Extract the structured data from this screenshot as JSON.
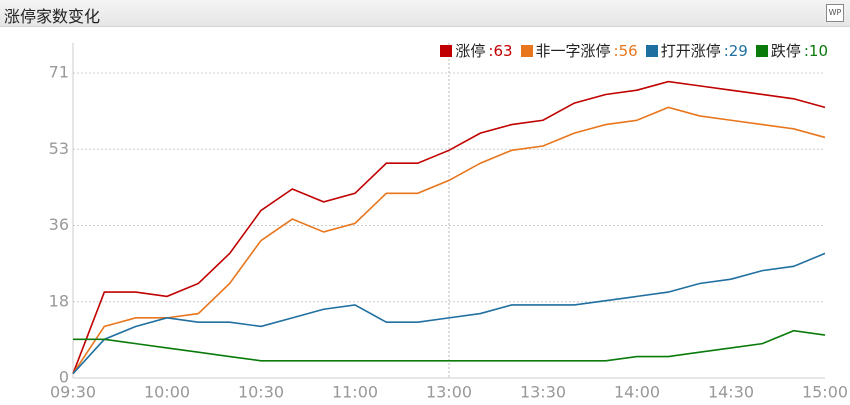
{
  "header": {
    "title": "涨停家数变化",
    "icon": "WP"
  },
  "chart_data": {
    "type": "line",
    "categories": [
      "09:30",
      null,
      null,
      "10:00",
      null,
      null,
      "10:30",
      null,
      null,
      "11:00",
      null,
      null,
      "13:00",
      null,
      null,
      "13:30",
      null,
      null,
      "14:00",
      null,
      null,
      "14:30",
      null,
      null,
      "15:00"
    ],
    "series": [
      {
        "name": "涨停",
        "label": ":63",
        "color": "#c00000",
        "values": [
          1,
          20,
          20,
          19,
          22,
          29,
          39,
          44,
          41,
          43,
          50,
          50,
          53,
          57,
          59,
          60,
          64,
          66,
          67,
          69,
          68,
          67,
          66,
          65,
          63
        ]
      },
      {
        "name": "非一字涨停",
        "label": ":56",
        "color": "#e8761d",
        "values": [
          1,
          12,
          14,
          14,
          15,
          22,
          32,
          37,
          34,
          36,
          43,
          43,
          46,
          50,
          53,
          54,
          57,
          59,
          60,
          63,
          61,
          60,
          59,
          58,
          56
        ]
      },
      {
        "name": "打开涨停",
        "label": ":29",
        "color": "#1f6fa0",
        "values": [
          1,
          9,
          12,
          14,
          13,
          13,
          12,
          14,
          16,
          17,
          13,
          13,
          14,
          15,
          17,
          17,
          17,
          18,
          19,
          20,
          22,
          23,
          25,
          26,
          29
        ]
      },
      {
        "name": "跌停",
        "label": ":10",
        "color": "#0a7a0a",
        "values": [
          9,
          9,
          8,
          7,
          6,
          5,
          4,
          4,
          4,
          4,
          4,
          4,
          4,
          4,
          4,
          4,
          4,
          4,
          5,
          5,
          6,
          7,
          8,
          11,
          10
        ]
      }
    ],
    "ylim": [
      0,
      71
    ],
    "yticks": [
      0,
      {
        "value": 17.75,
        "label": "18"
      },
      {
        "value": 35.5,
        "label": "36"
      },
      {
        "value": 53.25,
        "label": "53"
      },
      71
    ],
    "grid": true
  }
}
